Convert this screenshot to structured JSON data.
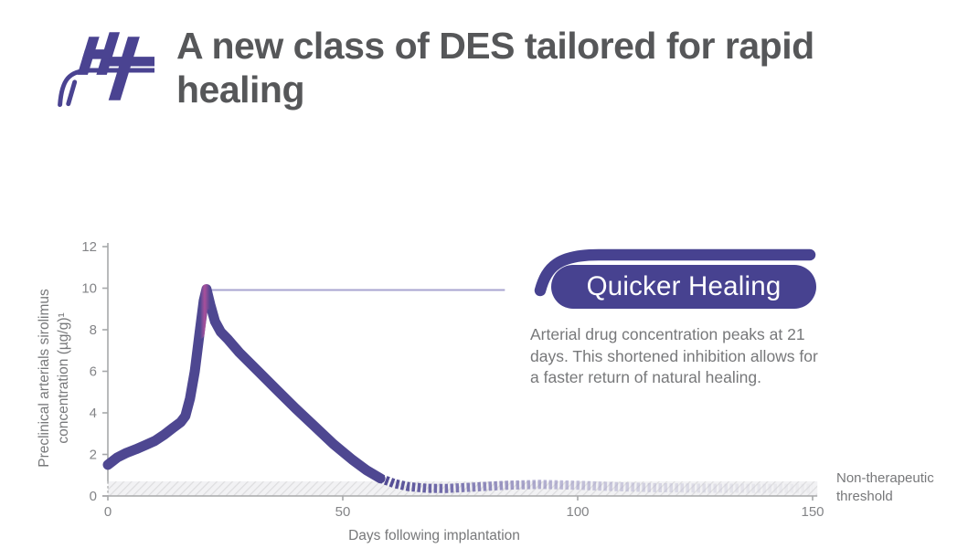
{
  "header": {
    "title": "A new class of DES tailored for rapid healing",
    "logo_monogram": "HT"
  },
  "callout": {
    "badge_label": "Quicker Healing",
    "body": "Arterial drug concentration peaks at 21 days. This shortened inhibition allows for a faster return of natural healing."
  },
  "colors": {
    "brand_purple": "#474290",
    "curve_purple": "#4e4791",
    "peak_magenta": "#b3509c",
    "reference_line_lavender": "#a8a4d0",
    "title_gray": "#565759",
    "text_gray": "#77787a",
    "axis_gray": "#a7a8aa",
    "tick_label_gray": "#838487",
    "band_gray": "#dcdcde"
  },
  "chart_data": {
    "type": "line",
    "title": "",
    "xlabel": "Days following implantation",
    "ylabel": "Preclinical arterials sirolimus concentration (µg/g)¹",
    "xlim": [
      0,
      151
    ],
    "ylim": [
      0,
      12
    ],
    "x_ticks": [
      0,
      50,
      100,
      150
    ],
    "y_ticks": [
      0,
      2,
      4,
      6,
      8,
      10,
      12
    ],
    "grid": false,
    "legend": "none",
    "series": [
      {
        "name": "arterial-sirolimus-concentration",
        "solid_until_day": 58,
        "points": [
          [
            0,
            1.5
          ],
          [
            2,
            1.85
          ],
          [
            4,
            2.08
          ],
          [
            6,
            2.25
          ],
          [
            8,
            2.45
          ],
          [
            10,
            2.65
          ],
          [
            12,
            2.95
          ],
          [
            14,
            3.3
          ],
          [
            15.5,
            3.55
          ],
          [
            16.5,
            3.85
          ],
          [
            17.5,
            4.7
          ],
          [
            18.5,
            6.0
          ],
          [
            19.5,
            7.8
          ],
          [
            20.4,
            9.4
          ],
          [
            21,
            9.95
          ],
          [
            21.8,
            9.2
          ],
          [
            22.8,
            8.4
          ],
          [
            24,
            7.9
          ],
          [
            25.5,
            7.55
          ],
          [
            28,
            6.9
          ],
          [
            32,
            6.0
          ],
          [
            36,
            5.1
          ],
          [
            40,
            4.2
          ],
          [
            44,
            3.35
          ],
          [
            48,
            2.5
          ],
          [
            52,
            1.75
          ],
          [
            55,
            1.25
          ],
          [
            58,
            0.85
          ],
          [
            61,
            0.6
          ],
          [
            64,
            0.45
          ],
          [
            68,
            0.37
          ],
          [
            72,
            0.36
          ],
          [
            78,
            0.43
          ],
          [
            85,
            0.52
          ],
          [
            92,
            0.56
          ],
          [
            100,
            0.52
          ],
          [
            108,
            0.45
          ],
          [
            116,
            0.4
          ],
          [
            126,
            0.38
          ],
          [
            138,
            0.37
          ],
          [
            150,
            0.37
          ]
        ]
      }
    ],
    "peak": {
      "day": 21,
      "value": 10
    },
    "peak_reference_line": {
      "value": 10,
      "from_day": 21.5,
      "to_day": 84.5
    },
    "threshold_band": {
      "from": 0,
      "to": 0.7,
      "label": "Non-therapeutic threshold"
    }
  }
}
